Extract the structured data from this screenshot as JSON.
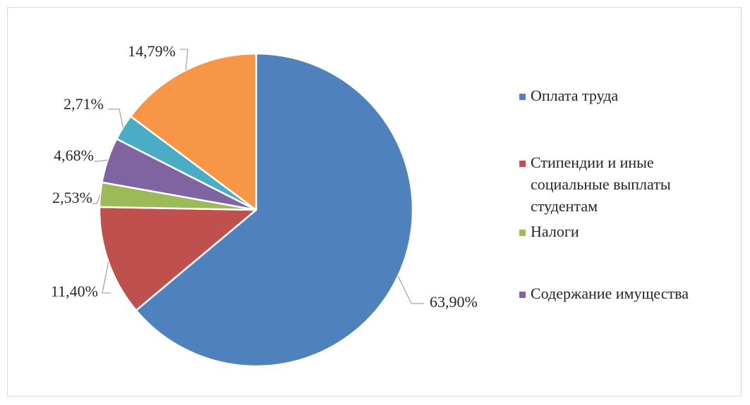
{
  "chart_data": {
    "type": "pie",
    "title": "",
    "start_angle_deg": 0,
    "direction": "clockwise",
    "legend_position": "right",
    "slices": [
      {
        "name": "Оплата труда",
        "label": "63,90%",
        "value": 63.9,
        "color": "#4f81bd"
      },
      {
        "name": "Стипендии и иные социальные выплаты студентам",
        "label": "11,40%",
        "value": 11.4,
        "color": "#c0504d"
      },
      {
        "name": "Налоги",
        "label": "2,53%",
        "value": 2.53,
        "color": "#9bbb59"
      },
      {
        "name": "Содержание имущества",
        "label": "4,68%",
        "value": 4.68,
        "color": "#8064a2"
      },
      {
        "name": "",
        "label": "2,71%",
        "value": 2.71,
        "color": "#4bacc6"
      },
      {
        "name": "",
        "label": "14,79%",
        "value": 14.79,
        "color": "#f79646"
      }
    ],
    "legend": [
      {
        "lines": [
          "Оплата труда"
        ],
        "color": "#4f81bd"
      },
      {
        "lines": [
          "Стипендии и иные",
          "социальные выплаты",
          "студентам"
        ],
        "color": "#c0504d"
      },
      {
        "lines": [
          "Налоги"
        ],
        "color": "#9bbb59"
      },
      {
        "lines": [
          "Содержание имущества"
        ],
        "color": "#8064a2"
      }
    ]
  }
}
